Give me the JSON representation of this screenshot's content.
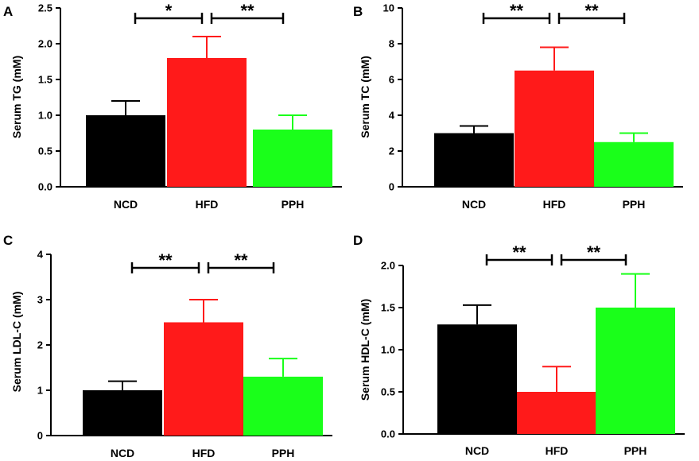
{
  "colors": {
    "NCD": "#000000",
    "HFD": "#ff1a1a",
    "PPH": "#1aff1a"
  },
  "chart_data": [
    {
      "panel": "A",
      "type": "bar",
      "categories": [
        "NCD",
        "HFD",
        "PPH"
      ],
      "values": [
        1.0,
        1.8,
        0.8
      ],
      "errors": [
        0.2,
        0.3,
        0.2
      ],
      "ylabel": "Serum TG (mM)",
      "ylim": [
        0,
        2.5
      ],
      "yticks": [
        "0.0",
        "0.5",
        "1.0",
        "1.5",
        "2.0",
        "2.5"
      ],
      "yticks_values": [
        0,
        0.5,
        1.0,
        1.5,
        2.0,
        2.5
      ],
      "significance": [
        {
          "from": "NCD",
          "to": "HFD",
          "label": "*"
        },
        {
          "from": "HFD",
          "to": "PPH",
          "label": "**"
        }
      ]
    },
    {
      "panel": "B",
      "type": "bar",
      "categories": [
        "NCD",
        "HFD",
        "PPH"
      ],
      "values": [
        3.0,
        6.5,
        2.5
      ],
      "errors": [
        0.4,
        1.3,
        0.5
      ],
      "ylabel": "Serum TC (mM)",
      "ylim": [
        0,
        10
      ],
      "yticks": [
        "0",
        "2",
        "4",
        "6",
        "8",
        "10"
      ],
      "yticks_values": [
        0,
        2,
        4,
        6,
        8,
        10
      ],
      "significance": [
        {
          "from": "NCD",
          "to": "HFD",
          "label": "**"
        },
        {
          "from": "HFD",
          "to": "PPH",
          "label": "**"
        }
      ]
    },
    {
      "panel": "C",
      "type": "bar",
      "categories": [
        "NCD",
        "HFD",
        "PPH"
      ],
      "values": [
        1.0,
        2.5,
        1.3
      ],
      "errors": [
        0.2,
        0.5,
        0.4
      ],
      "ylabel": "Serum LDL-C (mM)",
      "ylim": [
        0,
        4
      ],
      "yticks": [
        "0",
        "1",
        "2",
        "3",
        "4"
      ],
      "yticks_values": [
        0,
        1,
        2,
        3,
        4
      ],
      "significance": [
        {
          "from": "NCD",
          "to": "HFD",
          "label": "**"
        },
        {
          "from": "HFD",
          "to": "PPH",
          "label": "**"
        }
      ]
    },
    {
      "panel": "D",
      "type": "bar",
      "categories": [
        "NCD",
        "HFD",
        "PPH"
      ],
      "values": [
        1.3,
        0.5,
        1.5
      ],
      "errors": [
        0.23,
        0.3,
        0.4
      ],
      "ylabel": "Serum HDL-C (mM)",
      "ylim": [
        0,
        2.0
      ],
      "yticks": [
        "0.0",
        "0.5",
        "1.0",
        "1.5",
        "2.0"
      ],
      "yticks_values": [
        0,
        0.5,
        1.0,
        1.5,
        2.0
      ],
      "significance": [
        {
          "from": "NCD",
          "to": "HFD",
          "label": "**"
        },
        {
          "from": "HFD",
          "to": "PPH",
          "label": "**"
        }
      ]
    }
  ]
}
